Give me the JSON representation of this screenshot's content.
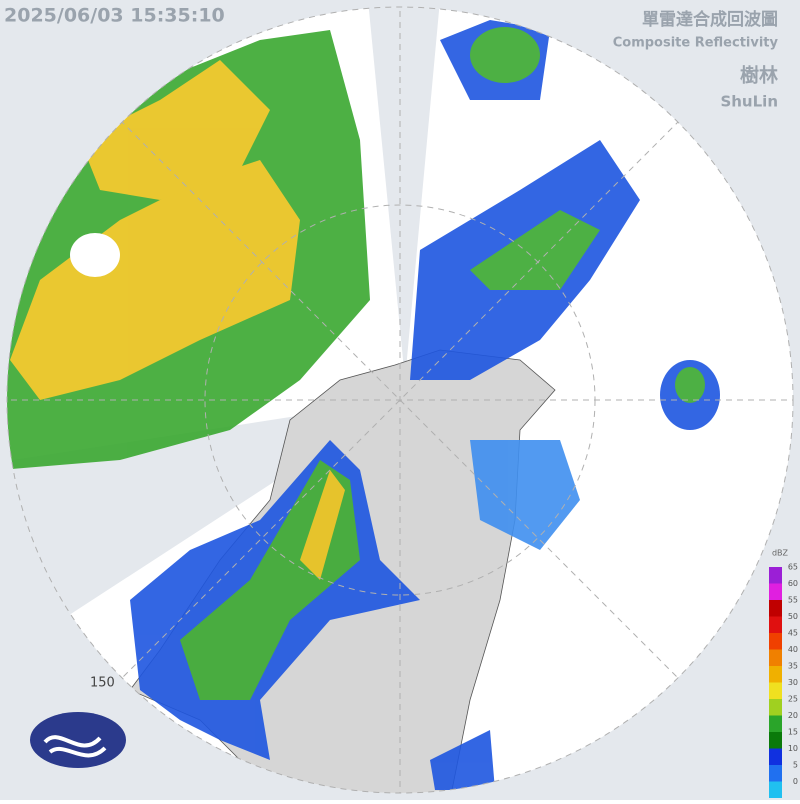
{
  "header": {
    "timestamp": "2025/06/03 15:35:10",
    "title_zh": "單雷達合成回波圖",
    "title_en": "Composite Reflectivity",
    "station_zh": "樹林",
    "station_en": "ShuLin"
  },
  "range_label": "150",
  "legend": {
    "unit": "dBZ",
    "ticks": [
      65,
      60,
      55,
      50,
      45,
      40,
      35,
      30,
      25,
      20,
      15,
      10,
      5,
      0
    ]
  }
}
